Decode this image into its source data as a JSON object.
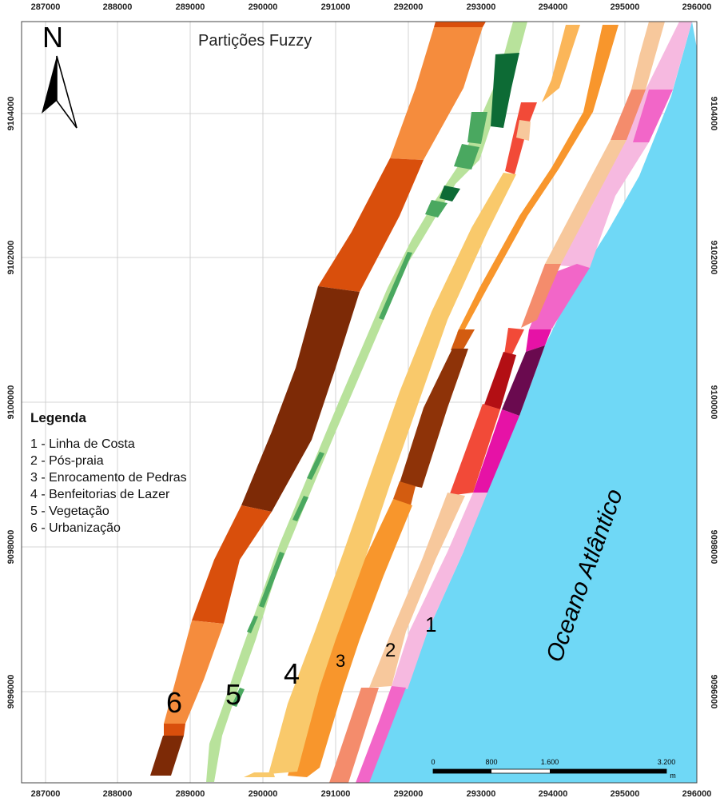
{
  "title": "Partições Fuzzy",
  "north_label": "N",
  "coordinates": {
    "x_ticks": [
      "287000",
      "288000",
      "289000",
      "290000",
      "291000",
      "292000",
      "293000",
      "294000",
      "295000",
      "296000"
    ],
    "y_ticks": [
      "9104000",
      "9102000",
      "9100000",
      "9098000",
      "9096000"
    ]
  },
  "legend": {
    "title": "Legenda",
    "items": [
      "1 - Linha de Costa",
      "2 - Pós-praia",
      "3 - Enrocamento de Pedras",
      "4 - Benfeitorias de Lazer",
      "5 - Vegetação",
      "6 - Urbanização"
    ]
  },
  "zone_labels": [
    "1",
    "2",
    "3",
    "4",
    "5",
    "6"
  ],
  "ocean_label": "Oceano Atlântico",
  "scale_bar": {
    "labels": [
      "0",
      "800",
      "1.600",
      "3.200"
    ],
    "unit": "m"
  },
  "colors": {
    "ocean": "#6fd8f6",
    "urbanizacao": [
      "#f58c3d",
      "#d94f0c",
      "#7d2a06"
    ],
    "vegetacao": [
      "#b8e29b",
      "#4aa860",
      "#0d6b35"
    ],
    "benfeitorias": [
      "#f9c96b",
      "#fbb659"
    ],
    "enrocamento": [
      "#f8962c",
      "#d35c10",
      "#8e3308"
    ],
    "pos_praia": [
      "#f7c89c",
      "#f48c6c",
      "#f24a38",
      "#b30f14"
    ],
    "linha_costa": [
      "#f6b9e0",
      "#f266c8",
      "#e612a6",
      "#6a0a4f"
    ]
  }
}
